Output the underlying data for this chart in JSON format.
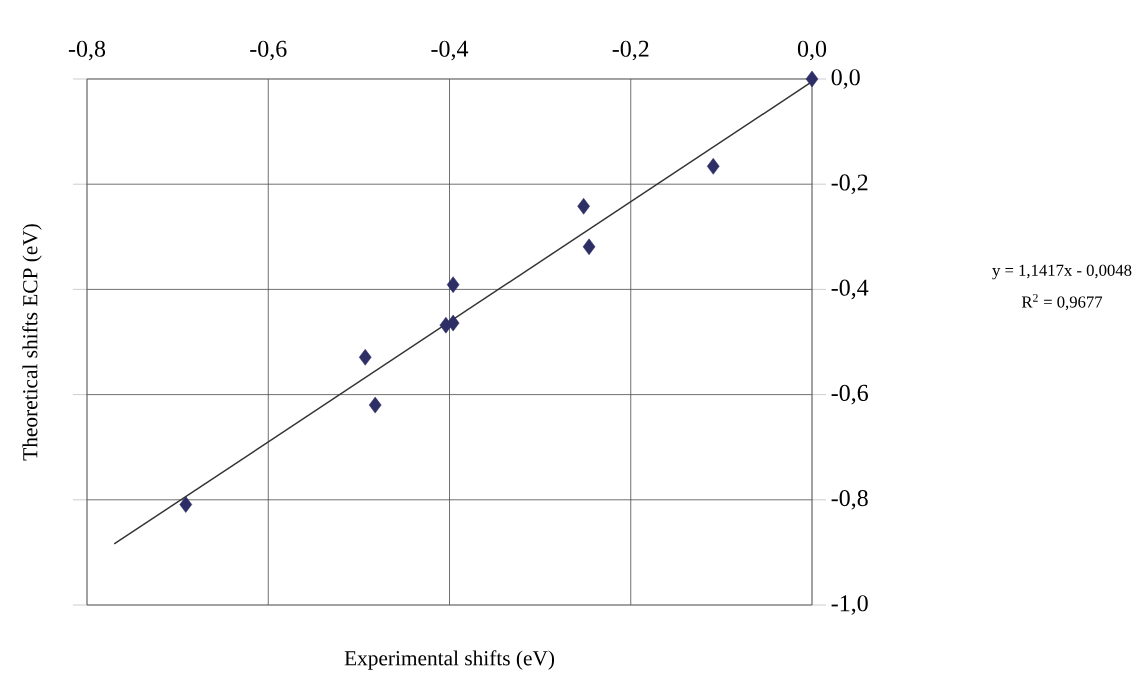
{
  "chart_data": {
    "type": "scatter",
    "xlabel": "Experimental shifts (eV)",
    "ylabel": "Theoretical shifts ECP (eV)",
    "annotations": [
      "y = 1,1417x - 0,0048",
      "R$^{2}$ = 0,9677"
    ],
    "xlim": [
      -0.8,
      0.0
    ],
    "ylim": [
      -1.0,
      0.0
    ],
    "xticks": [
      {
        "value": -0.8,
        "label": "-0,8"
      },
      {
        "value": -0.6,
        "label": "-0,6"
      },
      {
        "value": -0.4,
        "label": "-0,4"
      },
      {
        "value": -0.2,
        "label": "-0,2"
      },
      {
        "value": 0.0,
        "label": "0,0"
      }
    ],
    "yticks": [
      {
        "value": -1.0,
        "label": "-1,0"
      },
      {
        "value": -0.8,
        "label": "-0,8"
      },
      {
        "value": -0.6,
        "label": "-0,6"
      },
      {
        "value": -0.4,
        "label": "-0,4"
      },
      {
        "value": -0.2,
        "label": "-0,2"
      },
      {
        "value": 0.0,
        "label": "0,0"
      }
    ],
    "grid": true,
    "series": [
      {
        "marker": "diamond",
        "color": "#2e2e66",
        "x": [
          0.0,
          -0.109,
          -0.252,
          -0.246,
          -0.396,
          -0.404,
          -0.396,
          -0.493,
          -0.482,
          -0.691
        ],
        "values": [
          0.0,
          -0.166,
          -0.242,
          -0.319,
          -0.391,
          -0.468,
          -0.464,
          -0.529,
          -0.62,
          -0.809
        ]
      },
      {
        "type": "line",
        "color": "#333333",
        "x": [
          -0.77,
          0.0
        ],
        "values": [
          -0.884,
          -0.005
        ]
      }
    ]
  }
}
